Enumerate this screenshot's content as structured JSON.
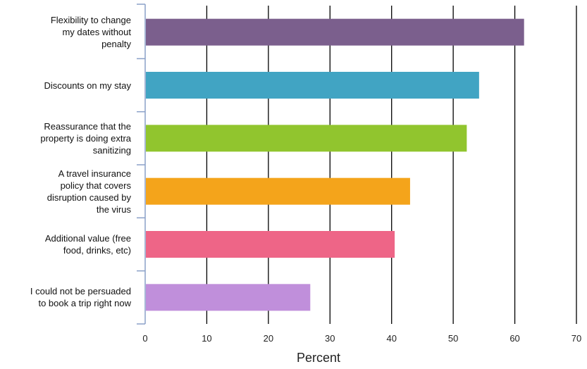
{
  "chart_data": {
    "type": "bar",
    "orientation": "horizontal",
    "categories": [
      "Flexibility to change\nmy dates without\npenalty",
      "Discounts on my stay",
      "Reassurance that the\nproperty is doing extra\nsanitizing",
      "A travel insurance\npolicy that covers\ndisruption caused by\nthe virus",
      "Additional value (free\nfood, drinks, etc)",
      "I could not be persuaded\nto book a trip right now"
    ],
    "values": [
      61.5,
      54.2,
      52.2,
      43,
      40.5,
      26.8
    ],
    "colors": [
      "#7b5f8d",
      "#41a4c3",
      "#91c52e",
      "#f4a41b",
      "#ee6587",
      "#c08fdb"
    ],
    "xlabel": "Percent",
    "ylabel": "",
    "title": "",
    "xlim": [
      0,
      70
    ],
    "x_ticks": [
      "0",
      "10",
      "20",
      "30",
      "40",
      "50",
      "60",
      "70"
    ],
    "grid": "vertical",
    "legend": "none"
  }
}
